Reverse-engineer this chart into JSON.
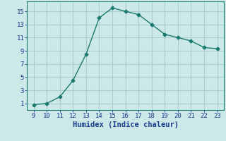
{
  "x": [
    9,
    10,
    11,
    12,
    13,
    14,
    15,
    16,
    17,
    18,
    19,
    20,
    21,
    22,
    23
  ],
  "y": [
    0.8,
    1.0,
    2.0,
    4.5,
    8.5,
    14.0,
    15.5,
    15.0,
    14.5,
    13.0,
    11.5,
    11.0,
    10.5,
    9.5,
    9.3
  ],
  "xlabel": "Humidex (Indice chaleur)",
  "xlim": [
    8.5,
    23.5
  ],
  "ylim": [
    0,
    16.5
  ],
  "xticks": [
    9,
    10,
    11,
    12,
    13,
    14,
    15,
    16,
    17,
    18,
    19,
    20,
    21,
    22,
    23
  ],
  "yticks": [
    1,
    3,
    5,
    7,
    9,
    11,
    13,
    15
  ],
  "line_color": "#1a7a6e",
  "bg_color": "#cce8e8",
  "grid_color": "#aacece",
  "marker": "D",
  "marker_size": 2.5,
  "line_width": 1.0,
  "xlabel_fontsize": 7.5,
  "tick_fontsize": 6.5,
  "text_color": "#1a3a8c"
}
